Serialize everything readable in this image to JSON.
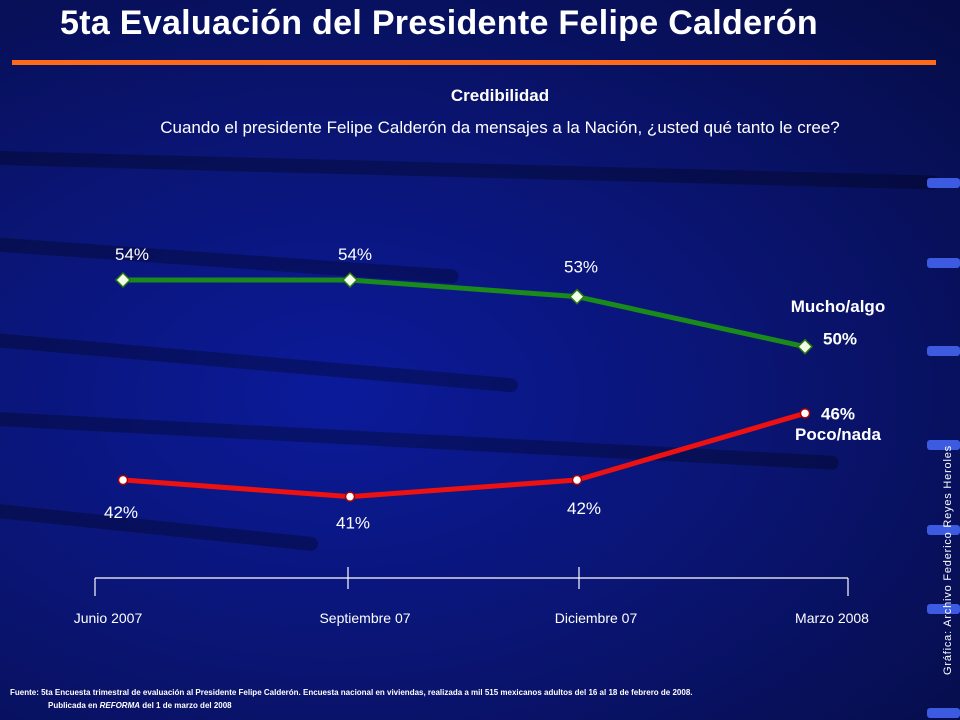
{
  "header": {
    "title": "5ta Evaluación del Presidente Felipe Calderón",
    "accent_color": "#ff6a1a"
  },
  "chart_data": {
    "type": "line",
    "title": "Credibilidad",
    "subtitle": "Cuando el presidente Felipe Calderón da mensajes a la Nación, ¿usted qué tanto le cree?",
    "categories": [
      "Junio 2007",
      "Septiembre 07",
      "Diciembre 07",
      "Marzo 2008"
    ],
    "series": [
      {
        "name": "Mucho/algo",
        "values": [
          54,
          54,
          53,
          50
        ],
        "labels": [
          "54%",
          "54%",
          "53%",
          "50%"
        ],
        "color": "#1a8a1a",
        "marker": "diamond"
      },
      {
        "name": "Poco/nada",
        "values": [
          42,
          41,
          42,
          46
        ],
        "labels": [
          "42%",
          "41%",
          "42%",
          "46%"
        ],
        "color": "#ee1111",
        "marker": "circle"
      }
    ],
    "ylim": [
      36,
      60
    ],
    "grid": false,
    "legend": "inline labels at right"
  },
  "footer": {
    "source": "Fuente: 5ta Encuesta trimestral de evaluación al Presidente Felipe Calderón. Encuesta nacional en viviendas, realizada a mil 515 mexicanos adultos del 16 al 18 de febrero de 2008.",
    "publication_prefix": "Publicada en ",
    "publication_name": "REFORMA",
    "publication_suffix": " del 1 de marzo del 2008"
  },
  "side_credit": "Gráfica: Archivo Federico Reyes Heroles"
}
